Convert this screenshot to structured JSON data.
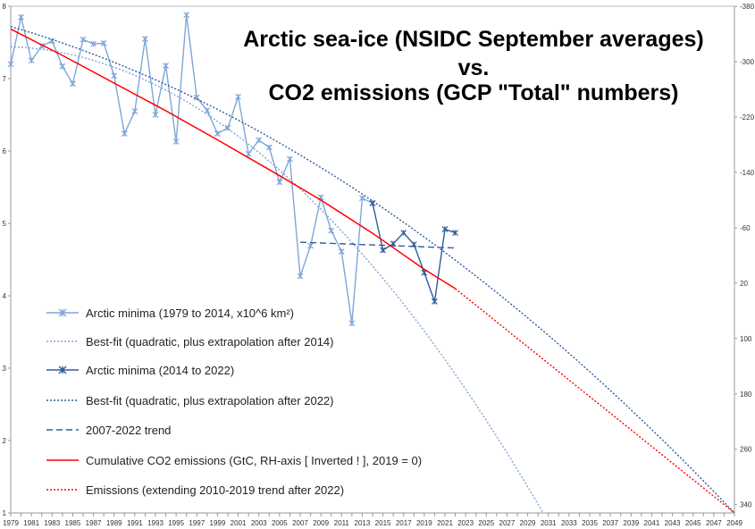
{
  "chart_data": {
    "type": "line",
    "title": [
      "Arctic sea-ice (NSIDC September averages)",
      "vs.",
      "CO2 emissions (GCP \"Total\" numbers)"
    ],
    "x_range": [
      1979,
      2049
    ],
    "x_ticks": [
      1979,
      1981,
      1983,
      1985,
      1987,
      1989,
      1991,
      1993,
      1995,
      1997,
      1999,
      2001,
      2003,
      2005,
      2007,
      2009,
      2011,
      2013,
      2015,
      2017,
      2019,
      2021,
      2023,
      2025,
      2027,
      2029,
      2031,
      2033,
      2035,
      2037,
      2039,
      2041,
      2043,
      2045,
      2047,
      2049
    ],
    "left_axis": {
      "range": [
        1,
        8
      ],
      "ticks": [
        1,
        2,
        3,
        4,
        5,
        6,
        7,
        8
      ]
    },
    "right_axis": {
      "range": [
        -380,
        352
      ],
      "inverted": true,
      "ticks": [
        -380,
        -300,
        -220,
        -140,
        -60,
        20,
        100,
        180,
        260,
        340
      ]
    },
    "series": [
      {
        "name": "Arctic minima (1979 to 2014, x10^6 km²)",
        "axis": "left",
        "style": "line-marker",
        "color": "#7ea6d8",
        "x": [
          1979,
          1980,
          1981,
          1982,
          1983,
          1984,
          1985,
          1986,
          1987,
          1988,
          1989,
          1990,
          1991,
          1992,
          1993,
          1994,
          1995,
          1996,
          1997,
          1998,
          1999,
          2000,
          2001,
          2002,
          2003,
          2004,
          2005,
          2006,
          2007,
          2008,
          2009,
          2010,
          2011,
          2012,
          2013,
          2014
        ],
        "y": [
          7.2,
          7.85,
          7.25,
          7.45,
          7.52,
          7.17,
          6.93,
          7.54,
          7.48,
          7.49,
          7.04,
          6.24,
          6.55,
          7.55,
          6.5,
          7.18,
          6.13,
          7.88,
          6.74,
          6.56,
          6.24,
          6.32,
          6.75,
          5.96,
          6.15,
          6.05,
          5.57,
          5.89,
          4.27,
          4.69,
          5.36,
          4.9,
          4.61,
          3.62,
          5.35,
          5.28
        ]
      },
      {
        "name": "Best-fit (quadratic, plus extrapolation after 2014)",
        "axis": "left",
        "style": "dotted",
        "color": "#7ea6d8",
        "quadratic": {
          "x0": 1979,
          "c": 7.44,
          "b": -0.00485,
          "a": -0.002334
        },
        "x_end": 2030.5
      },
      {
        "name": "Arctic minima (2014 to 2022)",
        "axis": "left",
        "style": "line-marker",
        "color": "#2e5d9c",
        "x": [
          2014,
          2015,
          2016,
          2017,
          2018,
          2019,
          2020,
          2021,
          2022
        ],
        "y": [
          5.28,
          4.63,
          4.72,
          4.87,
          4.71,
          4.32,
          3.92,
          4.92,
          4.87
        ]
      },
      {
        "name": "Best-fit (quadratic, plus extrapolation after 2022)",
        "axis": "left",
        "style": "dotted",
        "color": "#2e5d9c",
        "quadratic": {
          "x0": 1979,
          "c": 7.72,
          "b": -0.0417,
          "a": -0.000776
        },
        "x_end": 2049
      },
      {
        "name": "2007-2022 trend",
        "axis": "left",
        "style": "dashed",
        "color": "#2e5d9c",
        "x": [
          2007,
          2022
        ],
        "y": [
          4.74,
          4.66
        ]
      },
      {
        "name": "Cumulative CO2 emissions (GtC, RH-axis [ Inverted ! ], 2019 = 0)",
        "axis": "right",
        "style": "solid",
        "color": "#ff0000",
        "x": [
          1979,
          1984,
          1989,
          1994,
          1999,
          2004,
          2009,
          2014,
          2019,
          2022
        ],
        "y": [
          -347,
          -309,
          -269,
          -229,
          -187,
          -144,
          -100,
          -52,
          0,
          28
        ]
      },
      {
        "name": "Emissions (extending 2010-2019 trend after 2022)",
        "axis": "right",
        "style": "dotted",
        "color": "#ff0000",
        "x": [
          2022,
          2049
        ],
        "y": [
          28,
          352
        ]
      }
    ],
    "legend_placement": "left"
  }
}
